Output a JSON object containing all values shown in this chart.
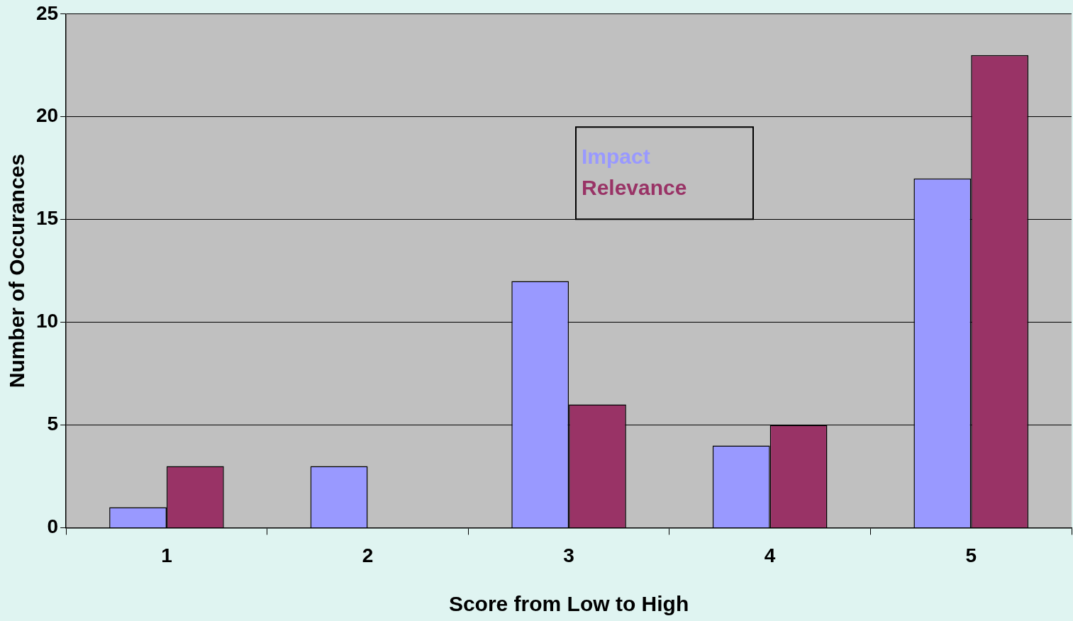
{
  "chart_data": {
    "type": "bar",
    "xlabel": "Score from Low to High",
    "ylabel": "Number of Occurances",
    "categories": [
      "1",
      "2",
      "3",
      "4",
      "5"
    ],
    "series": [
      {
        "name": "Impact",
        "color": "#9999ff",
        "values": [
          1,
          3,
          12,
          4,
          17
        ]
      },
      {
        "name": "Relevance",
        "color": "#993366",
        "values": [
          3,
          0,
          6,
          5,
          23
        ]
      }
    ],
    "ylim": [
      0,
      25
    ],
    "yticks": [
      0,
      5,
      10,
      15,
      20,
      25
    ],
    "grid": "y",
    "legend": "top"
  }
}
